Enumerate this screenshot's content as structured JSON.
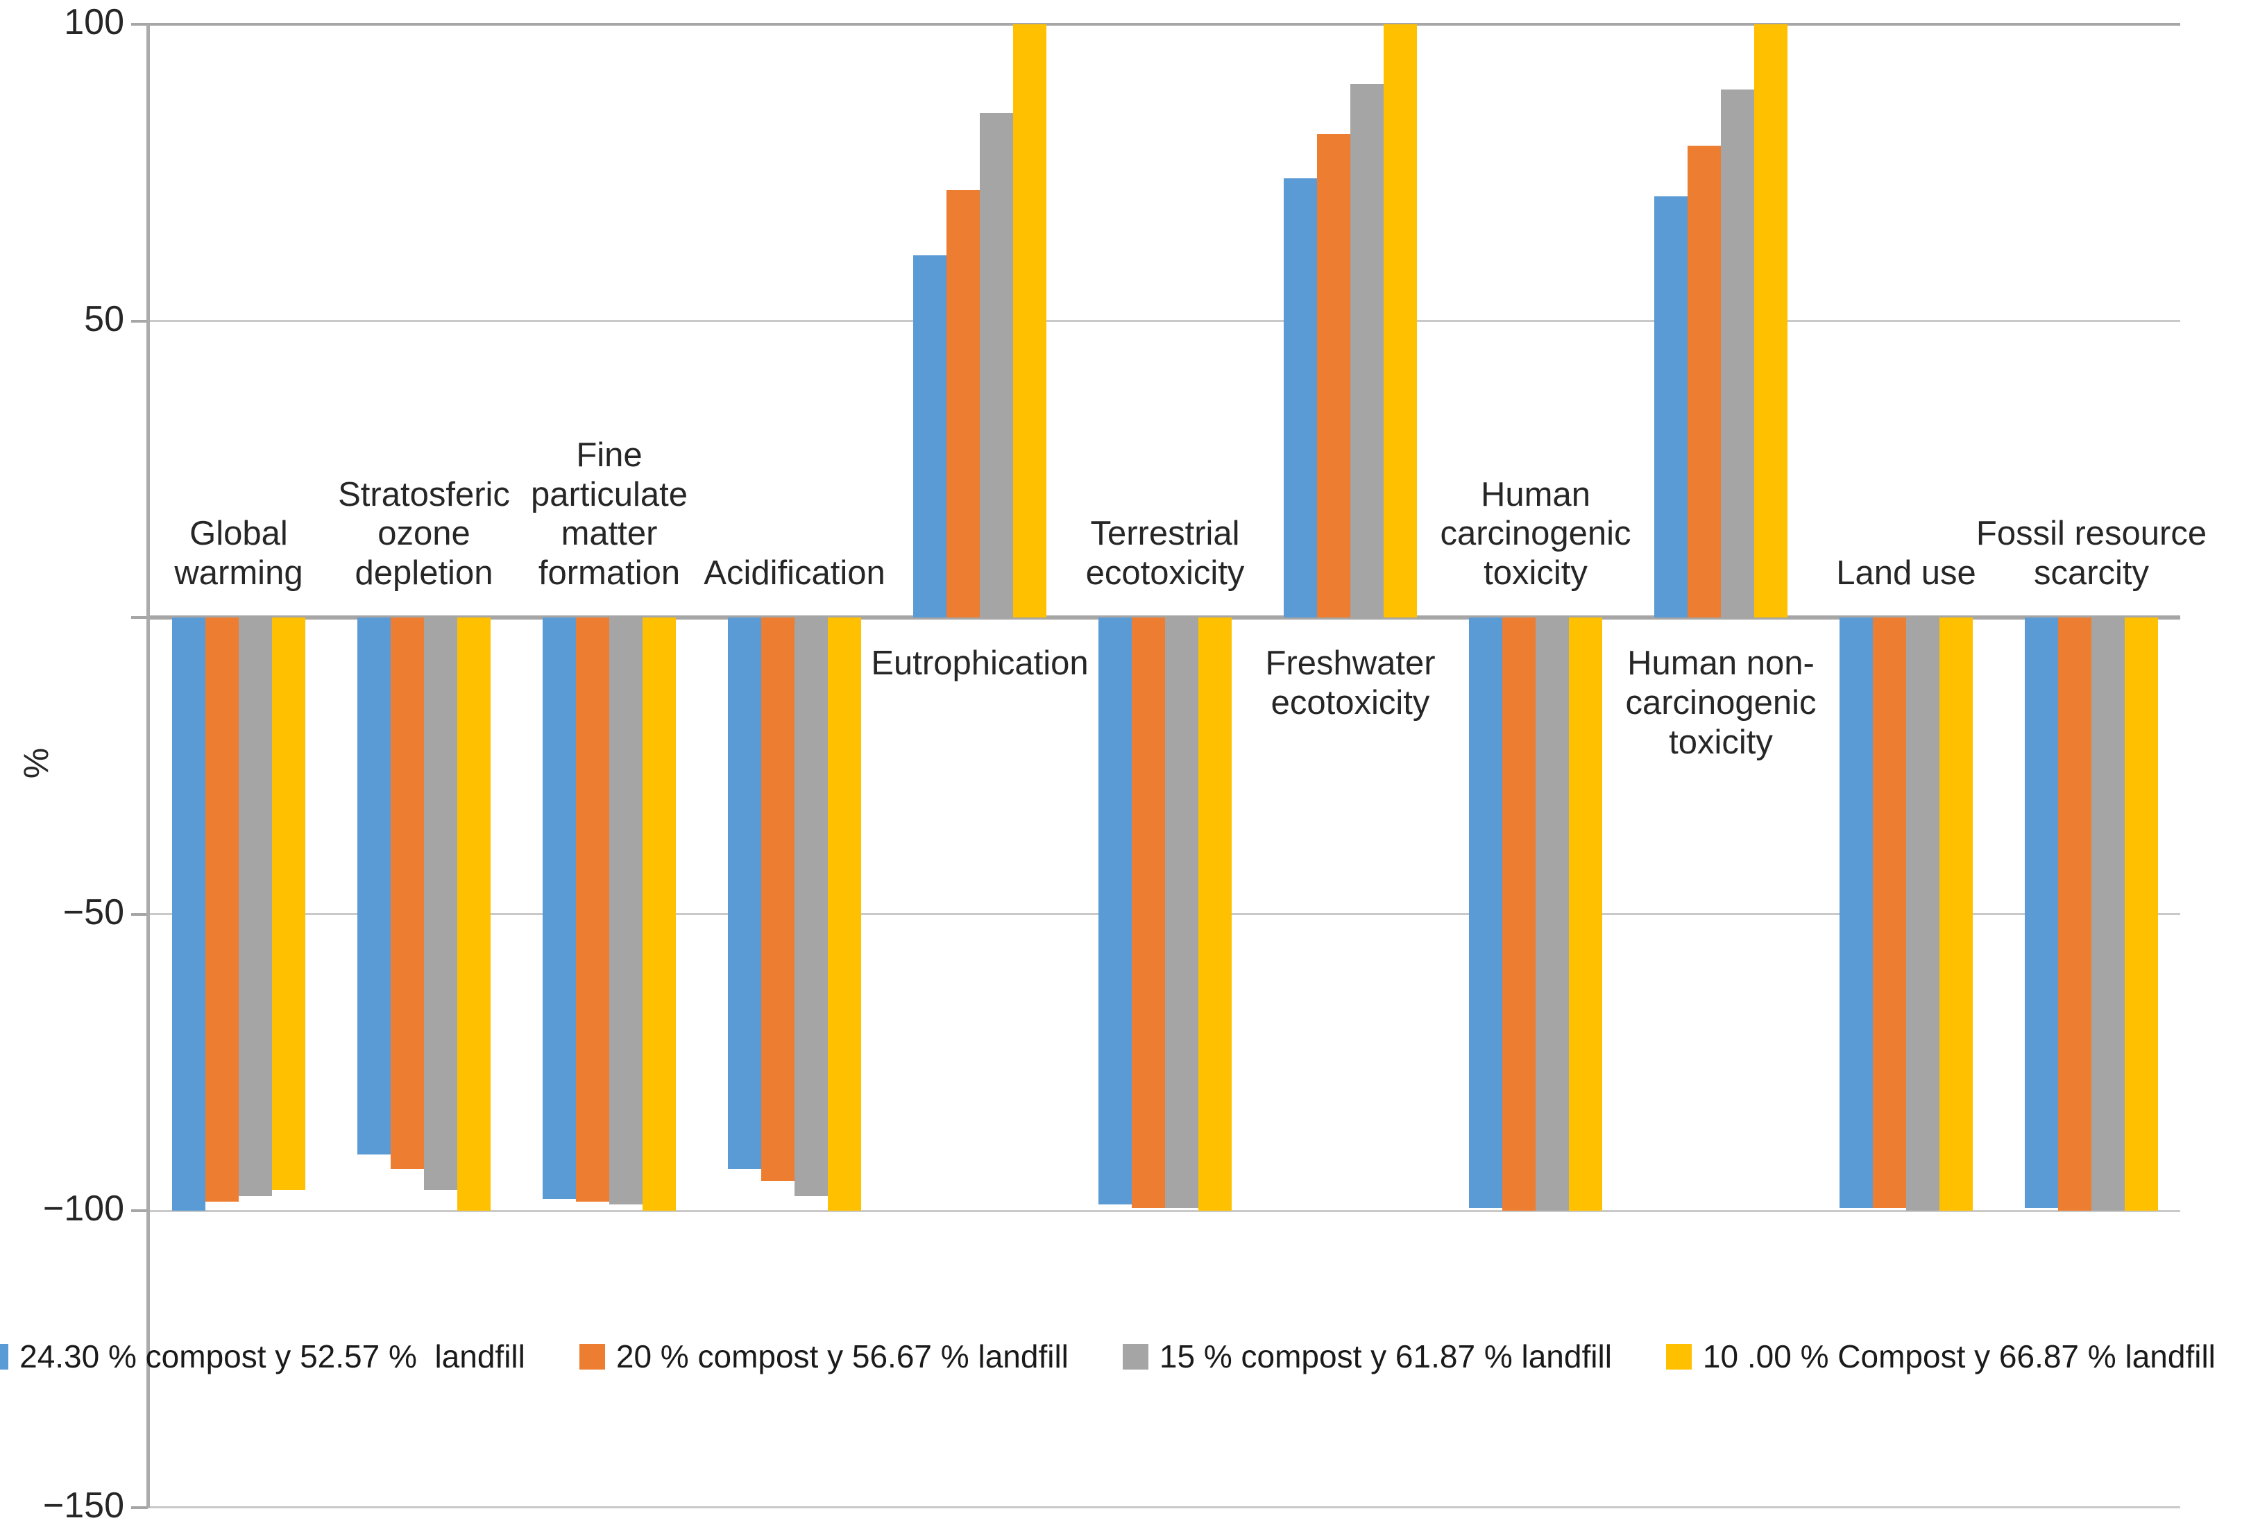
{
  "chart_data": {
    "type": "bar",
    "title": "",
    "xlabel": "",
    "ylabel": "%",
    "ylim": [
      -150,
      100
    ],
    "grid": true,
    "legend_position": "bottom-inside",
    "yticks": [
      {
        "value": 100,
        "label": "100"
      },
      {
        "value": 50,
        "label": "50"
      },
      {
        "value": 0,
        "label": ""
      },
      {
        "value": -50,
        "label": "−50"
      },
      {
        "value": -100,
        "label": "−100"
      },
      {
        "value": -150,
        "label": "−150"
      }
    ],
    "categories": [
      {
        "label": "Global warming",
        "lines": [
          "Global",
          "warming"
        ],
        "label_side": "above"
      },
      {
        "label": "Stratosferic ozone depletion",
        "lines": [
          "Stratosferic",
          "ozone",
          "depletion"
        ],
        "label_side": "above"
      },
      {
        "label": "Fine particulate matter formation",
        "lines": [
          "Fine",
          "particulate",
          "matter",
          "formation"
        ],
        "label_side": "above"
      },
      {
        "label": "Acidification",
        "lines": [
          "Acidification"
        ],
        "label_side": "above"
      },
      {
        "label": "Eutrophication",
        "lines": [
          "Eutrophication"
        ],
        "label_side": "below"
      },
      {
        "label": "Terrestrial ecotoxicity",
        "lines": [
          "Terrestrial",
          "ecotoxicity"
        ],
        "label_side": "above"
      },
      {
        "label": "Freshwater ecotoxicity",
        "lines": [
          "Freshwater",
          "ecotoxicity"
        ],
        "label_side": "below"
      },
      {
        "label": "Human carcinogenic toxicity",
        "lines": [
          "Human",
          "carcinogenic",
          "toxicity"
        ],
        "label_side": "above"
      },
      {
        "label": "Human non-carcinogenic toxicity",
        "lines": [
          "Human non-",
          "carcinogenic",
          "toxicity"
        ],
        "label_side": "below"
      },
      {
        "label": "Land use",
        "lines": [
          "Land use"
        ],
        "label_side": "above"
      },
      {
        "label": "Fossil resource scarcity",
        "lines": [
          "Fossil resource",
          "scarcity"
        ],
        "label_side": "above"
      }
    ],
    "series": [
      {
        "name": "24.30 % compost y 52.57 %  landfill",
        "color": "#5B9BD5",
        "values": [
          -100,
          -90.5,
          -98,
          -93,
          61,
          -99,
          74,
          -99.5,
          71,
          -99.5,
          -99.5
        ]
      },
      {
        "name": "20 % compost y 56.67 % landfill",
        "color": "#ED7D31",
        "values": [
          -98.5,
          -93,
          -98.5,
          -95,
          72,
          -99.5,
          81.5,
          -100,
          79.5,
          -99.5,
          -100
        ]
      },
      {
        "name": "15 % compost y 61.87 % landfill",
        "color": "#A5A5A5",
        "values": [
          -97.5,
          -96.5,
          -99,
          -97.5,
          85,
          -99.5,
          90,
          -100,
          89,
          -100,
          -100
        ]
      },
      {
        "name": "10 .00 % Compost y 66.87 % landfill",
        "color": "#FFC000",
        "values": [
          -96.5,
          -100,
          -100,
          -100,
          100,
          -100,
          100,
          -100,
          100,
          -100,
          -100
        ]
      }
    ]
  }
}
